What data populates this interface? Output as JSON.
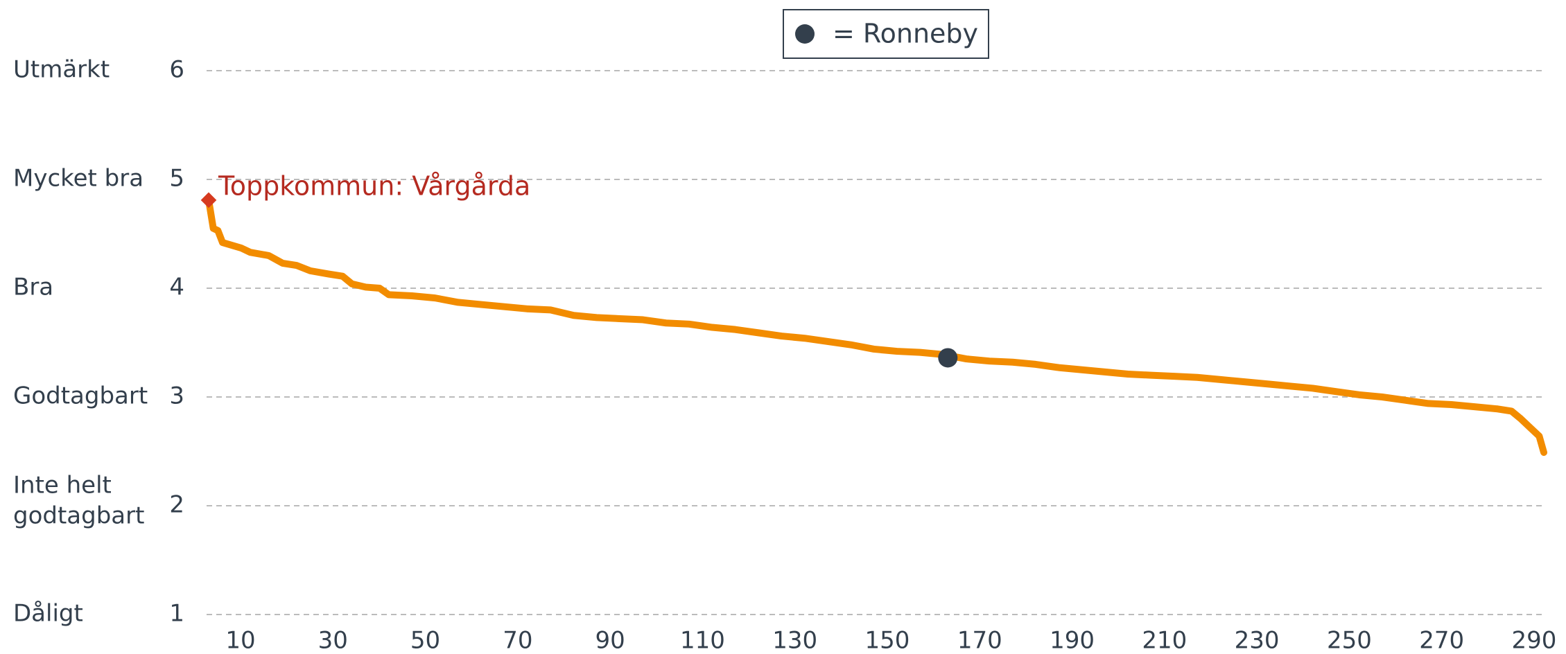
{
  "chart_data": {
    "type": "line",
    "legend": {
      "label": "= Ronneby",
      "color": "#333f4c"
    },
    "y_level_labels": [
      {
        "value": 6,
        "label": [
          "Utmärkt"
        ]
      },
      {
        "value": 5,
        "label": [
          "Mycket bra"
        ]
      },
      {
        "value": 4,
        "label": [
          "Bra"
        ]
      },
      {
        "value": 3,
        "label": [
          "Godtagbart"
        ]
      },
      {
        "value": 2,
        "label": [
          "Inte helt",
          "godtagbart"
        ]
      },
      {
        "value": 1,
        "label": [
          "Dåligt"
        ]
      }
    ],
    "ylim": [
      1,
      6
    ],
    "yticks": [
      1,
      2,
      3,
      4,
      5,
      6
    ],
    "xlim": [
      1,
      290
    ],
    "xticks": [
      10,
      30,
      50,
      70,
      90,
      110,
      130,
      150,
      170,
      190,
      210,
      230,
      250,
      270,
      290
    ],
    "grid": true,
    "series": [
      {
        "color": "#f28c00",
        "x": [
          1,
          2,
          3,
          4,
          8,
          10,
          14,
          17,
          20,
          23,
          27,
          30,
          32,
          35,
          38,
          40,
          45,
          50,
          55,
          60,
          65,
          70,
          75,
          80,
          85,
          90,
          95,
          100,
          105,
          110,
          115,
          120,
          125,
          130,
          135,
          140,
          145,
          150,
          155,
          160,
          165,
          170,
          175,
          180,
          185,
          190,
          195,
          200,
          205,
          210,
          215,
          220,
          225,
          230,
          235,
          240,
          245,
          250,
          255,
          260,
          265,
          270,
          275,
          280,
          283,
          285,
          287,
          289,
          290
        ],
        "values": [
          4.81,
          4.55,
          4.53,
          4.42,
          4.37,
          4.33,
          4.3,
          4.23,
          4.21,
          4.16,
          4.13,
          4.11,
          4.04,
          4.01,
          4.0,
          3.94,
          3.93,
          3.91,
          3.87,
          3.85,
          3.83,
          3.81,
          3.8,
          3.75,
          3.73,
          3.72,
          3.71,
          3.68,
          3.67,
          3.64,
          3.62,
          3.59,
          3.56,
          3.54,
          3.51,
          3.48,
          3.44,
          3.42,
          3.41,
          3.39,
          3.35,
          3.33,
          3.32,
          3.3,
          3.27,
          3.25,
          3.23,
          3.21,
          3.2,
          3.19,
          3.18,
          3.16,
          3.14,
          3.12,
          3.1,
          3.08,
          3.05,
          3.02,
          3.0,
          2.97,
          2.94,
          2.93,
          2.91,
          2.89,
          2.87,
          2.8,
          2.72,
          2.64,
          2.49
        ]
      }
    ],
    "highlight": {
      "x": 161,
      "y": 3.36,
      "color": "#333f4c"
    },
    "top": {
      "x": 1,
      "y": 4.81,
      "color": "#d63a1f",
      "label": "Toppkommun: Vårgårda",
      "label_color": "#b52a20"
    }
  }
}
